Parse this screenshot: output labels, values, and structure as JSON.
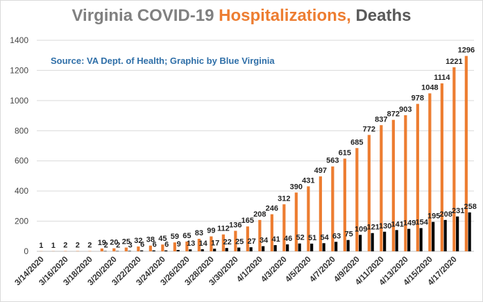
{
  "title": {
    "part1": "Virginia COVID-19 ",
    "part2": "Hospitalizations,",
    "part3": " Deaths",
    "color1": "#808080",
    "color2": "#ed7d31",
    "color3": "#595959"
  },
  "subtitle": "Source: VA Dept. of Health; Graphic by Blue Virginia",
  "colors": {
    "hospitalizations": "#ed7d31",
    "deaths": "#000000",
    "grid": "#d9d9d9",
    "axis": "#bfbfbf"
  },
  "chart_data": {
    "type": "bar",
    "title": "Virginia COVID-19 Hospitalizations, Deaths",
    "categories": [
      "3/14/2020",
      "3/15/2020",
      "3/16/2020",
      "3/17/2020",
      "3/18/2020",
      "3/19/2020",
      "3/20/2020",
      "3/21/2020",
      "3/22/2020",
      "3/23/2020",
      "3/24/2020",
      "3/25/2020",
      "3/26/2020",
      "3/27/2020",
      "3/28/2020",
      "3/29/2020",
      "3/30/2020",
      "3/31/2020",
      "4/1/2020",
      "4/2/2020",
      "4/3/2020",
      "4/4/2020",
      "4/5/2020",
      "4/6/2020",
      "4/7/2020",
      "4/8/2020",
      "4/9/2020",
      "4/10/2020",
      "4/11/2020",
      "4/12/2020",
      "4/13/2020",
      "4/14/2020",
      "4/15/2020",
      "4/16/2020",
      "4/17/2020",
      "4/18/2020"
    ],
    "tick_labels_shown": [
      "3/14/2020",
      "3/16/2020",
      "3/18/2020",
      "3/20/2020",
      "3/22/2020",
      "3/24/2020",
      "3/26/2020",
      "3/28/2020",
      "3/30/2020",
      "4/1/2020",
      "4/3/2020",
      "4/5/2020",
      "4/7/2020",
      "4/9/2020",
      "4/11/2020",
      "4/13/2020",
      "4/15/2020",
      "4/17/2020"
    ],
    "series": [
      {
        "values": [
          1,
          1,
          2,
          2,
          2,
          19,
          20,
          25,
          32,
          38,
          45,
          59,
          65,
          83,
          99,
          112,
          136,
          165,
          208,
          246,
          312,
          390,
          431,
          497,
          563,
          615,
          685,
          772,
          837,
          872,
          903,
          978,
          1048,
          1114,
          1221,
          1296
        ]
      },
      {
        "values": [
          null,
          null,
          null,
          null,
          null,
          2,
          2,
          3,
          6,
          6,
          6,
          9,
          13,
          14,
          17,
          22,
          25,
          27,
          34,
          41,
          46,
          52,
          51,
          54,
          63,
          75,
          109,
          121,
          130,
          141,
          149,
          154,
          195,
          208,
          231,
          258
        ]
      }
    ],
    "data_labels": [
      [
        "1",
        "1",
        "2",
        "2",
        "2",
        "19",
        "20",
        "25",
        "32",
        "38",
        "45",
        "59",
        "65",
        "83",
        "99",
        "112",
        "136",
        "165",
        "208",
        "246",
        "312",
        "390",
        "431",
        "497",
        "563",
        "615",
        "685",
        "772",
        "837",
        "872",
        "903",
        "978",
        "1048",
        "1114",
        "1221",
        "1296"
      ],
      [
        "",
        "",
        "",
        "",
        "",
        "2",
        "2",
        "3",
        "6",
        "6",
        "6",
        "9",
        "13",
        "14",
        "17",
        "22",
        "25",
        "27",
        "34",
        "41",
        "46",
        "52",
        "51",
        "54",
        "63",
        "75",
        "109",
        "121",
        "130",
        "141",
        "149",
        "154",
        "195",
        "208",
        "231",
        "258"
      ]
    ],
    "yticks": [
      "0",
      "200",
      "400",
      "600",
      "800",
      "1000",
      "1200",
      "1400"
    ],
    "ylim": [
      0,
      1400
    ],
    "xlabel": "",
    "ylabel": "",
    "grid": true,
    "legend": "none"
  }
}
